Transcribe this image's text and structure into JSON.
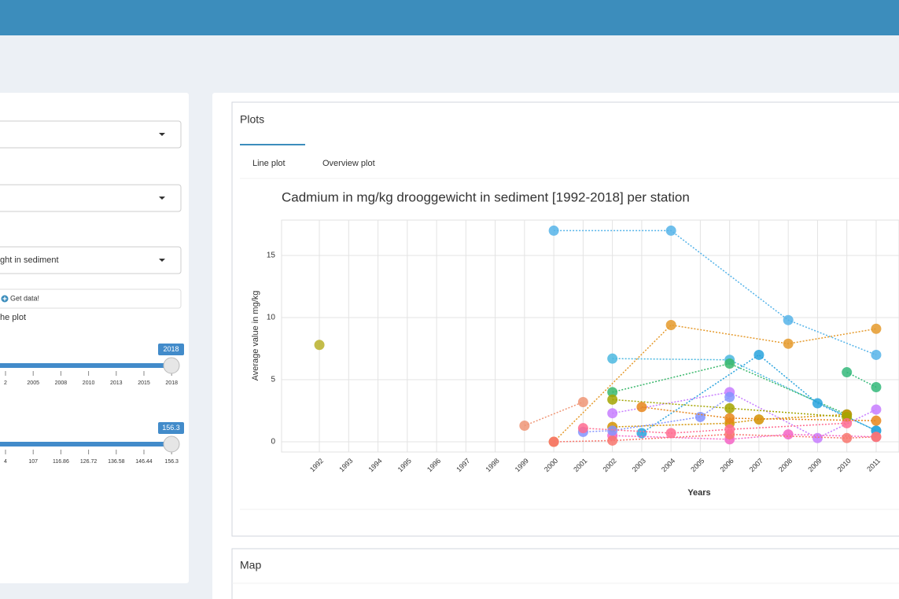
{
  "sidebar": {
    "select_text": "ght in sediment",
    "button": "Get data!",
    "link": "he plot",
    "sliders": [
      {
        "value_label": "2018",
        "ticks": [
          "2",
          "2005",
          "2008",
          "2010",
          "2013",
          "2015",
          "2018"
        ]
      },
      {
        "value_label": "156.3",
        "ticks": [
          "4",
          "107",
          "116.86",
          "126.72",
          "136.58",
          "146.44",
          "156.3"
        ]
      }
    ]
  },
  "main": {
    "box_title": "Plots",
    "tabs": [
      "Line plot",
      "Overview plot"
    ],
    "map_title": "Map"
  },
  "chart_data": {
    "type": "line",
    "title": "Cadmium in mg/kg drooggewicht in sediment [1992-2018] per station",
    "x_label": "Years",
    "y_label": "Average value in mg/kg",
    "xlim": [
      1990.71,
      2011.78
    ],
    "ylim": [
      -0.82,
      17.85
    ],
    "xticks": [
      1992,
      1993,
      1994,
      1995,
      1996,
      1997,
      1998,
      1999,
      2000,
      2001,
      2002,
      2003,
      2004,
      2005,
      2006,
      2007,
      2008,
      2009,
      2010,
      2011
    ],
    "yticks": [
      0,
      5,
      10,
      15
    ],
    "grid": true,
    "series": [
      {
        "color": "#56b4e9",
        "x": [
          2000,
          2004,
          2008,
          2011
        ],
        "values": [
          17,
          17,
          9.8,
          7
        ]
      },
      {
        "color": "#4cb8e0",
        "x": [
          2002,
          2006,
          2011
        ],
        "values": [
          6.7,
          6.6,
          0.9
        ]
      },
      {
        "color": "#b8b02a",
        "x": [
          1992
        ],
        "values": [
          7.8
        ]
      },
      {
        "color": "#e59a2c",
        "x": [
          2000,
          2004,
          2008,
          2011
        ],
        "values": [
          0,
          9.4,
          7.9,
          9.1
        ]
      },
      {
        "color": "#ef9575",
        "x": [
          1999,
          2001
        ],
        "values": [
          1.3,
          3.2
        ]
      },
      {
        "color": "#3ab86c",
        "x": [
          2002,
          2006,
          2010
        ],
        "values": [
          4,
          6.3,
          2.2
        ]
      },
      {
        "color": "#34b97a",
        "x": [
          2010,
          2011
        ],
        "values": [
          5.6,
          4.4
        ]
      },
      {
        "color": "#29a3dd",
        "x": [
          2003,
          2007,
          2009,
          2011
        ],
        "values": [
          0.7,
          7,
          3.1,
          0.9
        ]
      },
      {
        "color": "#c77cff",
        "x": [
          2002,
          2006,
          2009,
          2011
        ],
        "values": [
          2.3,
          4,
          0.3,
          2.6
        ]
      },
      {
        "color": "#f564c4",
        "x": [
          2002,
          2006,
          2008,
          2011
        ],
        "values": [
          0.5,
          0.2,
          0.6,
          0.4
        ]
      },
      {
        "color": "#f8766d",
        "x": [
          2000,
          2002,
          2006,
          2010,
          2011
        ],
        "values": [
          0,
          0.1,
          0.6,
          0.3,
          0.4
        ]
      },
      {
        "color": "#d39200",
        "x": [
          2002,
          2006,
          2007,
          2010
        ],
        "values": [
          1.2,
          1.5,
          1.8,
          2.2
        ]
      },
      {
        "color": "#a3a500",
        "x": [
          2002,
          2006,
          2010
        ],
        "values": [
          3.4,
          2.7,
          2
        ]
      },
      {
        "color": "#8494ff",
        "x": [
          2001,
          2002,
          2005,
          2006
        ],
        "values": [
          0.8,
          0.9,
          2,
          3.6
        ]
      },
      {
        "color": "#ff6c91",
        "x": [
          2001,
          2004,
          2006,
          2010
        ],
        "values": [
          1.1,
          0.7,
          1,
          1.5
        ]
      },
      {
        "color": "#e7861b",
        "x": [
          2003,
          2006,
          2011
        ],
        "values": [
          2.8,
          1.9,
          1.7
        ]
      }
    ]
  }
}
